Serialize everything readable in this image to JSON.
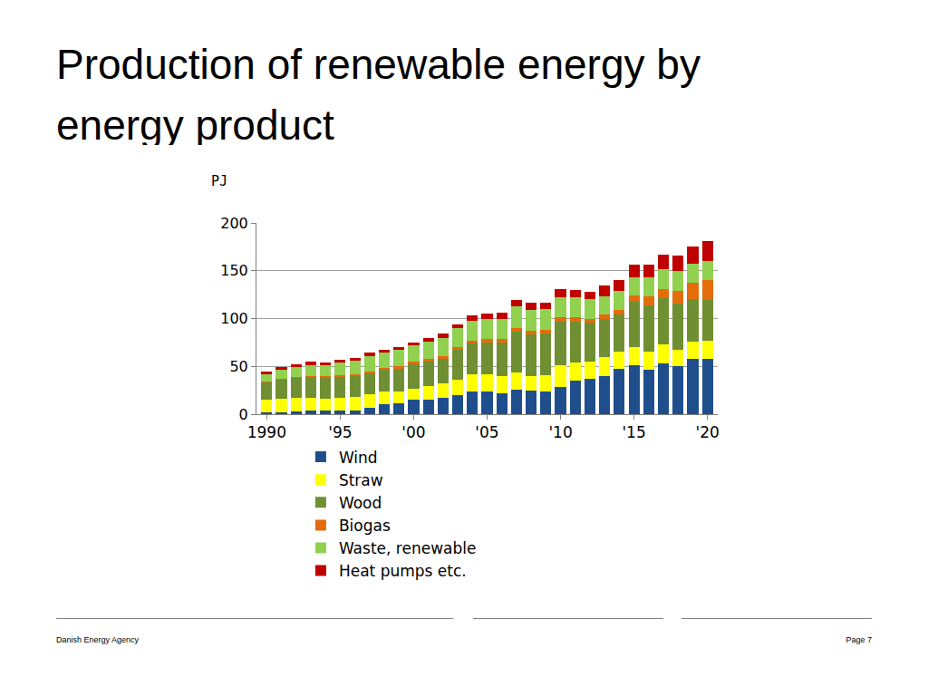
{
  "chart_data": {
    "type": "bar",
    "title": "Production of renewable energy by energy product",
    "ylabel": "PJ",
    "x": [
      1990,
      1991,
      1992,
      1993,
      1994,
      1995,
      1996,
      1997,
      1998,
      1999,
      2000,
      2001,
      2002,
      2003,
      2004,
      2005,
      2006,
      2007,
      2008,
      2009,
      2010,
      2011,
      2012,
      2013,
      2014,
      2015,
      2016,
      2017,
      2018,
      2019,
      2020
    ],
    "xlim": [
      1989.3,
      2020.7
    ],
    "xticks": [
      {
        "value": 1990,
        "label": "1990"
      },
      {
        "value": 1995,
        "label": "'95"
      },
      {
        "value": 2000,
        "label": "'00"
      },
      {
        "value": 2005,
        "label": "'05"
      },
      {
        "value": 2010,
        "label": "'10"
      },
      {
        "value": 2015,
        "label": "'15"
      },
      {
        "value": 2020,
        "label": "'20"
      }
    ],
    "ylim": [
      0,
      200
    ],
    "yticks": [
      0,
      50,
      100,
      150,
      200
    ],
    "grid": true,
    "stacked": true,
    "legend": "bottom",
    "series": [
      {
        "name": "Wind",
        "color": "#1f4e8c",
        "values": [
          2,
          2,
          3,
          4,
          4,
          4,
          4,
          7,
          10,
          11,
          15,
          15,
          17,
          20,
          24,
          24,
          22,
          26,
          25,
          24,
          28,
          35,
          37,
          40,
          47,
          51,
          46,
          53,
          50,
          58,
          58
        ]
      },
      {
        "name": "Straw",
        "color": "#ffff00",
        "values": [
          13,
          14,
          14,
          13,
          12,
          13,
          14,
          14,
          14,
          13,
          12,
          14,
          15,
          16,
          18,
          18,
          18,
          18,
          15,
          17,
          23,
          19,
          18,
          20,
          18,
          19,
          19,
          20,
          17,
          18,
          19
        ]
      },
      {
        "name": "Wood",
        "color": "#6f8f32",
        "values": [
          18,
          20,
          21,
          22,
          22,
          22,
          22,
          22,
          22,
          23,
          25,
          26,
          26,
          31,
          32,
          33,
          35,
          42,
          43,
          43,
          46,
          43,
          41,
          40,
          39,
          48,
          49,
          48,
          49,
          44,
          42
        ]
      },
      {
        "name": "Biogas",
        "color": "#e46c0a",
        "values": [
          1,
          1,
          1,
          1,
          2,
          2,
          2,
          2,
          2,
          3,
          3,
          3,
          3,
          3,
          3,
          4,
          4,
          4,
          4,
          4,
          4,
          4,
          4,
          4,
          5,
          6,
          9,
          10,
          13,
          17,
          21
        ]
      },
      {
        "name": "Waste, renewable",
        "color": "#92d050",
        "values": [
          8,
          9,
          10,
          11,
          11,
          13,
          14,
          16,
          16,
          17,
          17,
          18,
          19,
          20,
          21,
          21,
          21,
          23,
          22,
          22,
          21,
          21,
          20,
          19,
          20,
          19,
          20,
          21,
          21,
          20,
          20
        ]
      },
      {
        "name": "Heat pumps etc.",
        "color": "#c00000",
        "values": [
          3,
          3,
          3,
          4,
          3,
          3,
          3,
          3,
          3,
          3,
          3,
          4,
          4,
          4,
          5,
          5,
          6,
          6,
          8,
          7,
          9,
          8,
          8,
          12,
          11,
          13,
          13,
          15,
          16,
          18,
          21
        ]
      }
    ],
    "annotations": [
      "Danish Energy Agency",
      "Page 7"
    ]
  }
}
